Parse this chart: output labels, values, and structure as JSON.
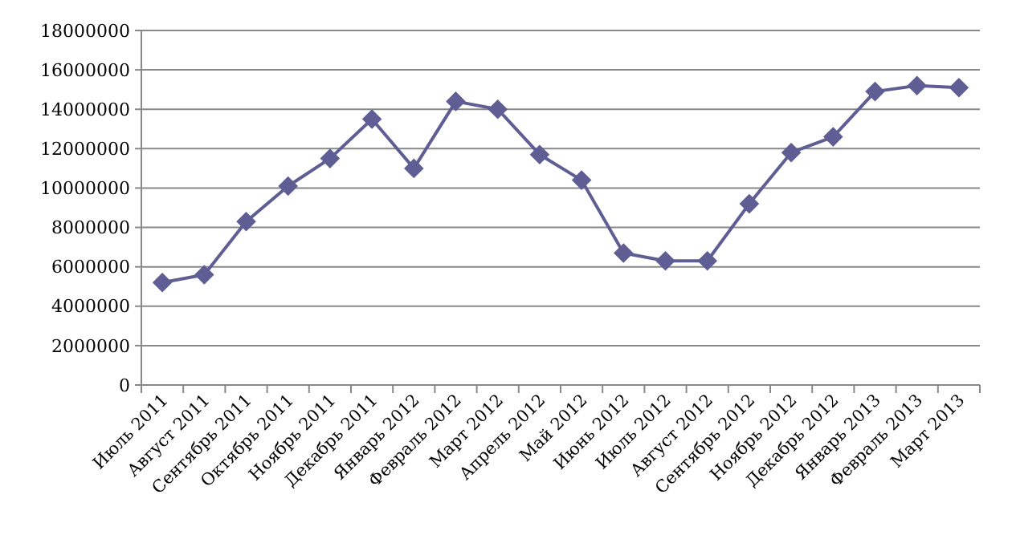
{
  "chart_data": {
    "type": "line",
    "categories": [
      "Июль 2011",
      "Август 2011",
      "Сентябрь 2011",
      "Октябрь 2011",
      "Ноябрь 2011",
      "Декабрь 2011",
      "Январь 2012",
      "Февраль 2012",
      "Март 2012",
      "Апрель 2012",
      "Май 2012",
      "Июнь 2012",
      "Июль 2012",
      "Август 2012",
      "Сентябрь 2012",
      "Ноябрь 2012",
      "Декабрь 2012",
      "Январь 2013",
      "Февраль 2013",
      "Март 2013"
    ],
    "series": [
      {
        "color": "#5e5e94",
        "values": [
          5200000,
          5600000,
          8300000,
          10100000,
          11500000,
          13500000,
          11000000,
          14400000,
          14000000,
          11700000,
          10400000,
          6700000,
          6300000,
          6300000,
          9200000,
          11800000,
          12600000,
          14900000,
          15200000,
          15100000
        ]
      }
    ],
    "ylim": [
      0,
      18000000
    ],
    "yticks": [
      0,
      2000000,
      4000000,
      6000000,
      8000000,
      10000000,
      12000000,
      14000000,
      16000000,
      18000000
    ],
    "grid": "y",
    "marker": "diamond",
    "line_style": "solid"
  }
}
